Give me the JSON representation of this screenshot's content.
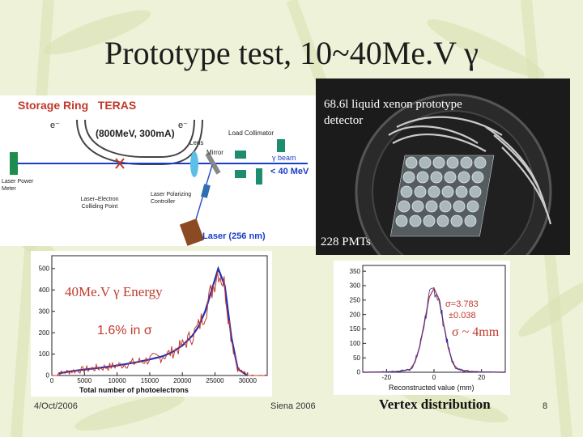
{
  "slide": {
    "title": "Prototype test, 10~40Me.V γ",
    "date": "4/Oct/2006",
    "venue": "Siena 2006",
    "page_number": "8"
  },
  "teras": {
    "title": "Storage Ring   TERAS",
    "beam_params": "(800MeV, 300mA)",
    "electron_left": "e⁻",
    "electron_right": "e⁻",
    "lens": "Lens",
    "mirror": "Mirror",
    "load_collimator": "Load Collimator",
    "gamma_beam": "γ beam",
    "gamma_energy": "< 40 MeV",
    "laser_power_meter": "Laser Power Meter",
    "laser_polarizing": "Laser Polarizing Controller",
    "colliding_point": "Laser–Electron Colliding Point",
    "laser": "Laser (256 nm)"
  },
  "detector_photo": {
    "caption": "68.6l liquid xenon prototype detector",
    "pmts": "228 PMTs"
  },
  "energy_plot": {
    "overlay_label": "40Me.V γ Energy",
    "resolution_label": "1.6% in σ",
    "xlabel": "Total number of photoelectrons",
    "yticks": [
      "0",
      "100",
      "200",
      "300",
      "400",
      "500"
    ],
    "xticks": [
      "0",
      "5000",
      "10000",
      "15000",
      "20000",
      "25000",
      "30000"
    ]
  },
  "vertex_plot": {
    "sigma_label": "σ ~ 4mm",
    "fit_sigma": "σ=3.783",
    "fit_error": "±0.038",
    "xlabel": "Reconstructed value (mm)",
    "yticks": [
      "0",
      "50",
      "100",
      "150",
      "200",
      "250",
      "300",
      "350"
    ],
    "xticks": [
      "-20",
      "0",
      "20"
    ],
    "caption": "Vertex distribution"
  },
  "chart_data": [
    {
      "type": "line",
      "title": "",
      "xlabel": "Total number of photoelectrons",
      "ylabel": "",
      "xlim": [
        0,
        33000
      ],
      "ylim": [
        0,
        560
      ],
      "series": [
        {
          "x": [
            1000,
            3000,
            5000,
            7000,
            9000,
            11000,
            13000,
            15000,
            17000,
            18500,
            20000,
            21500,
            22500,
            23500,
            24500,
            25500,
            26500,
            27500,
            28500,
            30000
          ],
          "values": [
            10,
            20,
            28,
            35,
            42,
            52,
            62,
            75,
            90,
            110,
            140,
            185,
            230,
            300,
            400,
            500,
            420,
            180,
            30,
            0
          ]
        }
      ],
      "grid": false
    },
    {
      "type": "line",
      "title": "",
      "xlabel": "Reconstructed value (mm)",
      "ylabel": "",
      "xlim": [
        -30,
        30
      ],
      "ylim": [
        0,
        370
      ],
      "series": [
        {
          "x": [
            -30,
            -20,
            -15,
            -10,
            -8,
            -6,
            -4,
            -2,
            0,
            2,
            4,
            6,
            8,
            10,
            15,
            20,
            30
          ],
          "values": [
            0,
            1,
            3,
            10,
            35,
            90,
            175,
            260,
            290,
            255,
            170,
            85,
            30,
            10,
            3,
            1,
            0
          ]
        }
      ],
      "grid": false
    }
  ]
}
